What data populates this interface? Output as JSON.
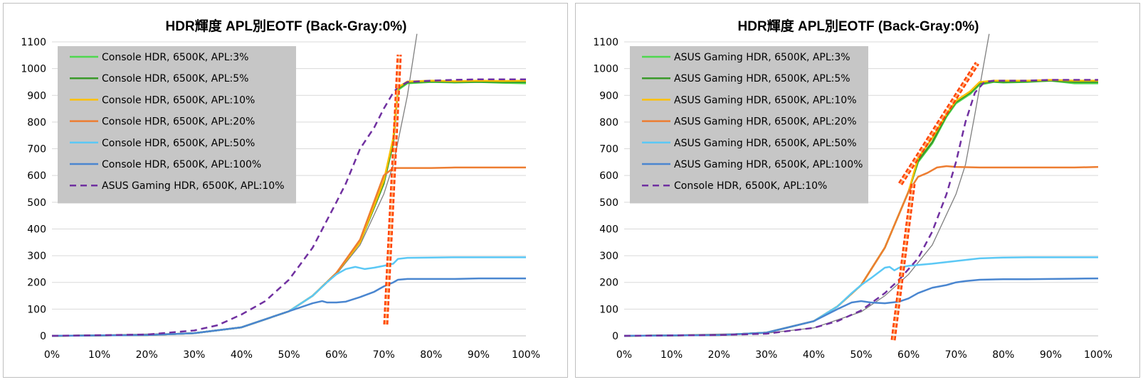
{
  "chart_data": [
    {
      "type": "line",
      "title": "HDR輝度 APL別EOTF (Back-Gray:0%)",
      "xlabel": "",
      "ylabel": "",
      "x_ticks": [
        "0%",
        "10%",
        "20%",
        "30%",
        "40%",
        "50%",
        "60%",
        "70%",
        "80%",
        "90%",
        "100%"
      ],
      "y_ticks": [
        "0",
        "100",
        "200",
        "300",
        "400",
        "500",
        "600",
        "700",
        "800",
        "900",
        "1000",
        "1100"
      ],
      "xlim": [
        0,
        100
      ],
      "ylim": [
        0,
        1100
      ],
      "grid": "horizontal",
      "legend_position": "top-left",
      "reference_curve": {
        "color": "#7f7f7f",
        "x": [
          0,
          30,
          40,
          50,
          55,
          60,
          65,
          70,
          72,
          75,
          77
        ],
        "y": [
          0,
          10,
          30,
          90,
          150,
          230,
          340,
          530,
          640,
          900,
          1130
        ]
      },
      "series": [
        {
          "name": "Console HDR, 6500K, APL:3%",
          "color": "#4ed84e",
          "dash": false,
          "x": [
            0,
            20,
            30,
            40,
            50,
            55,
            60,
            65,
            70,
            72,
            73,
            75,
            80,
            85,
            90,
            95,
            100
          ],
          "y": [
            0,
            3,
            10,
            32,
            92,
            150,
            235,
            350,
            570,
            720,
            920,
            945,
            950,
            948,
            950,
            947,
            945
          ]
        },
        {
          "name": "Console HDR, 6500K, APL:5%",
          "color": "#3a9a2a",
          "dash": false,
          "x": [
            0,
            20,
            30,
            40,
            50,
            55,
            60,
            65,
            70,
            72,
            73,
            75,
            80,
            85,
            90,
            95,
            100
          ],
          "y": [
            0,
            3,
            10,
            32,
            92,
            150,
            235,
            350,
            570,
            725,
            925,
            948,
            952,
            950,
            951,
            950,
            950
          ]
        },
        {
          "name": "Console HDR, 6500K, APL:10%",
          "color": "#ffc000",
          "dash": false,
          "x": [
            0,
            20,
            30,
            40,
            50,
            55,
            60,
            65,
            70,
            72,
            73,
            75,
            80,
            85,
            90,
            95,
            100
          ],
          "y": [
            0,
            3,
            10,
            32,
            92,
            150,
            235,
            350,
            580,
            740,
            930,
            952,
            955,
            953,
            955,
            954,
            955
          ]
        },
        {
          "name": "Console HDR, 6500K, APL:20%",
          "color": "#ed7d31",
          "dash": false,
          "x": [
            0,
            20,
            30,
            40,
            50,
            55,
            60,
            65,
            70,
            72,
            75,
            80,
            85,
            90,
            95,
            100
          ],
          "y": [
            0,
            3,
            10,
            32,
            92,
            150,
            235,
            360,
            600,
            628,
            628,
            628,
            630,
            630,
            630,
            630
          ]
        },
        {
          "name": "Console HDR, 6500K, APL:50%",
          "color": "#5bc8f5",
          "dash": false,
          "x": [
            0,
            20,
            30,
            40,
            50,
            55,
            58,
            60,
            62,
            64,
            66,
            68,
            70,
            72,
            73,
            75,
            80,
            85,
            90,
            95,
            100
          ],
          "y": [
            0,
            3,
            10,
            32,
            92,
            150,
            200,
            230,
            250,
            258,
            250,
            255,
            262,
            270,
            288,
            292,
            293,
            294,
            294,
            294,
            294
          ]
        },
        {
          "name": "Console HDR, 6500K, APL:100%",
          "color": "#4a86d0",
          "dash": false,
          "x": [
            0,
            20,
            30,
            40,
            50,
            55,
            57,
            58,
            60,
            62,
            65,
            68,
            70,
            72,
            73,
            75,
            80,
            85,
            90,
            95,
            100
          ],
          "y": [
            0,
            3,
            10,
            32,
            92,
            122,
            130,
            125,
            125,
            128,
            145,
            165,
            185,
            200,
            210,
            213,
            213,
            213,
            215,
            215,
            215
          ]
        },
        {
          "name": "ASUS Gaming HDR, 6500K, APL:10%",
          "color": "#7030a0",
          "dash": true,
          "x": [
            0,
            20,
            30,
            35,
            40,
            45,
            50,
            55,
            60,
            62,
            65,
            68,
            70,
            72,
            73,
            75,
            80,
            85,
            90,
            95,
            100
          ],
          "y": [
            0,
            5,
            20,
            40,
            80,
            130,
            210,
            330,
            500,
            570,
            700,
            780,
            850,
            910,
            930,
            950,
            955,
            958,
            960,
            960,
            960
          ]
        }
      ]
    },
    {
      "type": "line",
      "title": "HDR輝度 APL別EOTF (Back-Gray:0%)",
      "xlabel": "",
      "ylabel": "",
      "x_ticks": [
        "0%",
        "10%",
        "20%",
        "30%",
        "40%",
        "50%",
        "60%",
        "70%",
        "80%",
        "90%",
        "100%"
      ],
      "y_ticks": [
        "0",
        "100",
        "200",
        "300",
        "400",
        "500",
        "600",
        "700",
        "800",
        "900",
        "1000",
        "1100"
      ],
      "xlim": [
        0,
        100
      ],
      "ylim": [
        0,
        1100
      ],
      "grid": "horizontal",
      "legend_position": "top-left",
      "reference_curve": {
        "color": "#7f7f7f",
        "x": [
          0,
          30,
          40,
          50,
          55,
          60,
          65,
          70,
          72,
          74,
          76,
          77
        ],
        "y": [
          0,
          10,
          30,
          90,
          150,
          230,
          340,
          530,
          640,
          830,
          1030,
          1130
        ]
      },
      "series": [
        {
          "name": "ASUS Gaming HDR, 6500K, APL:3%",
          "color": "#4ed84e",
          "dash": false,
          "x": [
            0,
            20,
            30,
            40,
            45,
            50,
            55,
            60,
            62,
            65,
            68,
            70,
            73,
            75,
            78,
            80,
            85,
            90,
            95,
            100
          ],
          "y": [
            0,
            3,
            12,
            55,
            110,
            190,
            330,
            540,
            650,
            720,
            820,
            870,
            905,
            940,
            950,
            948,
            950,
            955,
            945,
            945
          ]
        },
        {
          "name": "ASUS Gaming HDR, 6500K, APL:5%",
          "color": "#3a9a2a",
          "dash": false,
          "x": [
            0,
            20,
            30,
            40,
            45,
            50,
            55,
            60,
            62,
            65,
            68,
            70,
            73,
            75,
            78,
            80,
            85,
            90,
            95,
            100
          ],
          "y": [
            0,
            3,
            12,
            55,
            110,
            190,
            330,
            540,
            655,
            725,
            825,
            875,
            910,
            945,
            952,
            950,
            952,
            955,
            950,
            950
          ]
        },
        {
          "name": "ASUS Gaming HDR, 6500K, APL:10%",
          "color": "#ffc000",
          "dash": false,
          "x": [
            0,
            20,
            30,
            40,
            45,
            50,
            55,
            60,
            62,
            65,
            68,
            70,
            73,
            75,
            78,
            80,
            85,
            90,
            95,
            100
          ],
          "y": [
            0,
            3,
            12,
            55,
            110,
            190,
            330,
            540,
            665,
            740,
            830,
            880,
            915,
            950,
            955,
            955,
            955,
            958,
            955,
            955
          ]
        },
        {
          "name": "ASUS Gaming HDR, 6500K, APL:20%",
          "color": "#ed7d31",
          "dash": false,
          "x": [
            0,
            20,
            30,
            40,
            45,
            50,
            55,
            60,
            62,
            64,
            66,
            68,
            70,
            75,
            80,
            85,
            90,
            95,
            100
          ],
          "y": [
            0,
            3,
            12,
            55,
            110,
            190,
            330,
            540,
            595,
            610,
            630,
            635,
            632,
            630,
            630,
            630,
            630,
            630,
            632
          ]
        },
        {
          "name": "ASUS Gaming HDR, 6500K, APL:50%",
          "color": "#5bc8f5",
          "dash": false,
          "x": [
            0,
            20,
            30,
            40,
            45,
            48,
            50,
            52,
            55,
            56,
            57,
            58,
            60,
            65,
            70,
            75,
            80,
            85,
            90,
            95,
            100
          ],
          "y": [
            0,
            3,
            12,
            55,
            110,
            160,
            190,
            215,
            255,
            258,
            245,
            255,
            262,
            270,
            280,
            290,
            293,
            294,
            294,
            294,
            294
          ]
        },
        {
          "name": "ASUS Gaming HDR, 6500K, APL:100%",
          "color": "#4a86d0",
          "dash": false,
          "x": [
            0,
            20,
            30,
            40,
            45,
            48,
            50,
            52,
            55,
            58,
            60,
            62,
            65,
            68,
            70,
            72,
            75,
            80,
            85,
            90,
            95,
            100
          ],
          "y": [
            0,
            3,
            12,
            55,
            100,
            125,
            130,
            125,
            122,
            128,
            140,
            160,
            180,
            190,
            200,
            205,
            210,
            212,
            212,
            213,
            214,
            215
          ]
        },
        {
          "name": "Console HDR, 6500K, APL:10%",
          "color": "#7030a0",
          "dash": true,
          "x": [
            0,
            20,
            30,
            40,
            45,
            50,
            55,
            58,
            60,
            62,
            65,
            68,
            70,
            72,
            74,
            76,
            78,
            80,
            85,
            90,
            95,
            100
          ],
          "y": [
            0,
            3,
            8,
            30,
            55,
            95,
            160,
            210,
            250,
            290,
            390,
            530,
            650,
            800,
            910,
            950,
            955,
            955,
            955,
            958,
            958,
            958
          ]
        }
      ]
    }
  ]
}
